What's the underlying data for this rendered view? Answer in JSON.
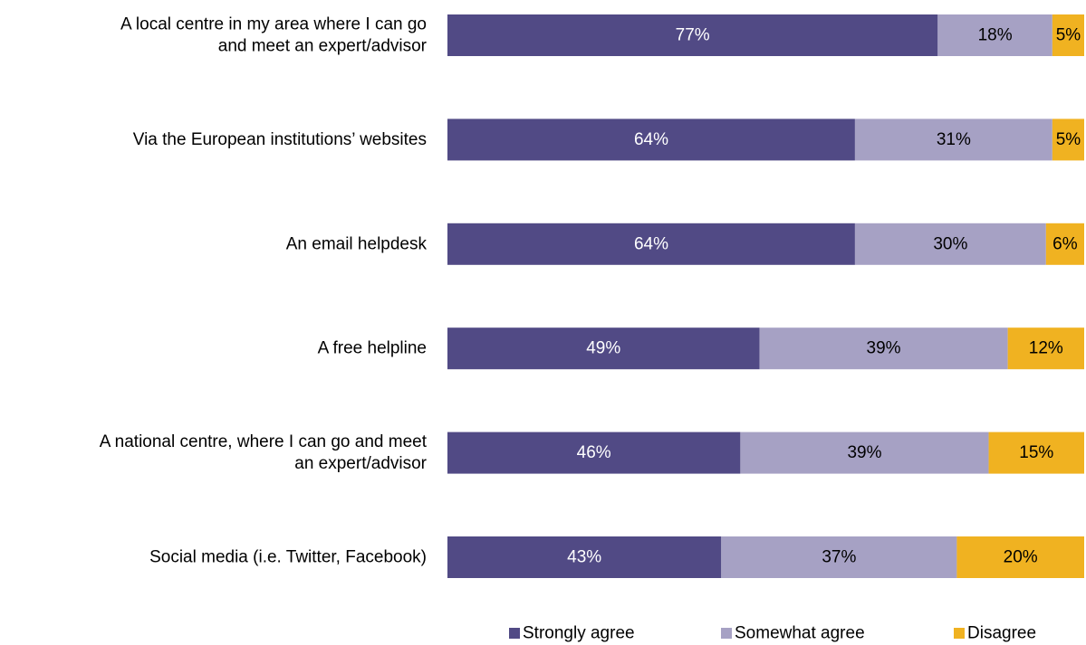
{
  "chart_data": {
    "type": "bar",
    "orientation": "horizontal",
    "stacked": true,
    "categories": [
      [
        "A local centre in my area where I can go",
        "and meet an expert/advisor"
      ],
      [
        "Via the European institutions’ websites"
      ],
      [
        "An email helpdesk"
      ],
      [
        "A free helpline"
      ],
      [
        "A national centre, where I can go and meet",
        "an expert/advisor"
      ],
      [
        "Social media (i.e. Twitter, Facebook)"
      ]
    ],
    "series": [
      {
        "name": "Strongly agree",
        "color": "#514a85",
        "label_color": "#ffffff",
        "values": [
          77,
          64,
          64,
          49,
          46,
          43
        ]
      },
      {
        "name": "Somewhat agree",
        "color": "#a6a1c4",
        "label_color": "#000000",
        "values": [
          18,
          31,
          30,
          39,
          39,
          37
        ]
      },
      {
        "name": "Disagree",
        "color": "#f0b221",
        "label_color": "#000000",
        "values": [
          5,
          5,
          6,
          12,
          15,
          20
        ]
      }
    ],
    "value_suffix": "%",
    "xlim": [
      0,
      100
    ],
    "grid": false,
    "legend_position": "bottom"
  }
}
